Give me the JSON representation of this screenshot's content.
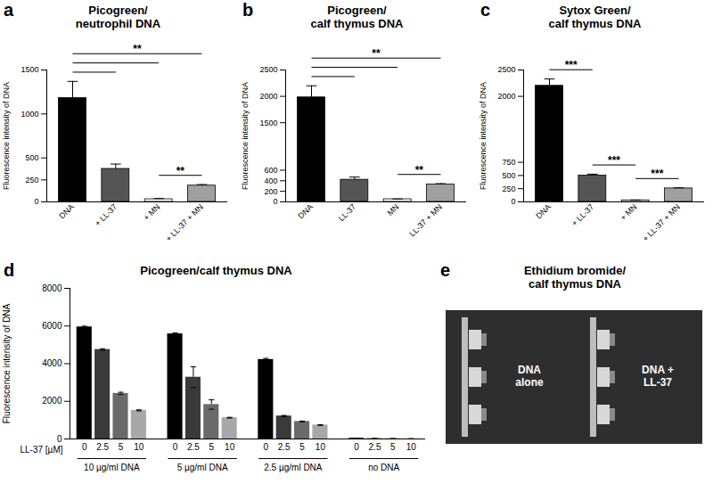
{
  "chart_data": [
    {
      "type": "bar",
      "panel": "a",
      "title": "Picogreen/\nneutrophil DNA",
      "y_label": "Fluorescence intensity of DNA",
      "categories": [
        "DNA",
        "+ LL-37",
        "+ MN",
        "+ LL-37 + MN"
      ],
      "values": [
        1180,
        375,
        30,
        185
      ],
      "errors": [
        190,
        55,
        8,
        12
      ],
      "colors": [
        "#000000",
        "#555555",
        "#ffffff",
        "#a0a0a0"
      ],
      "ylim": [
        0,
        1500
      ],
      "yticks": [
        0,
        250,
        500,
        1000,
        1500
      ],
      "annotations": [
        {
          "text": "**",
          "between": [
            [
              "DNA",
              "+ LL-37"
            ],
            [
              "DNA",
              "+ MN"
            ],
            [
              "DNA",
              "+ LL-37 + MN"
            ]
          ]
        },
        {
          "text": "**",
          "between": [
            [
              "+ MN",
              "+ LL-37 + MN"
            ]
          ]
        }
      ]
    },
    {
      "type": "bar",
      "panel": "b",
      "title": "Picogreen/\ncalf thymus DNA",
      "y_label": "Fluorescence intensity of DNA",
      "categories": [
        "DNA",
        "LL-37",
        "MN",
        "LL-37 + MN"
      ],
      "values": [
        1980,
        420,
        50,
        330
      ],
      "errors": [
        220,
        50,
        5,
        15
      ],
      "colors": [
        "#000000",
        "#555555",
        "#ffffff",
        "#a0a0a0"
      ],
      "ylim": [
        0,
        2500
      ],
      "yticks": [
        0,
        200,
        400,
        600,
        1500,
        2000,
        2500
      ],
      "annotations": [
        {
          "text": "**",
          "between": [
            [
              "DNA",
              "LL-37"
            ],
            [
              "DNA",
              "MN"
            ],
            [
              "DNA",
              "LL-37 + MN"
            ]
          ]
        },
        {
          "text": "**",
          "between": [
            [
              "MN",
              "LL-37 + MN"
            ]
          ]
        }
      ]
    },
    {
      "type": "bar",
      "panel": "c",
      "title": "Sytox Green/\ncalf thymus DNA",
      "y_label": "Fluorescence intensity of DNA",
      "categories": [
        "DNA",
        "+ LL-37",
        "+ MN",
        "+ LL-37 + MN"
      ],
      "values": [
        2200,
        500,
        30,
        255
      ],
      "errors": [
        130,
        25,
        5,
        12
      ],
      "colors": [
        "#000000",
        "#555555",
        "#ffffff",
        "#a0a0a0"
      ],
      "ylim": [
        0,
        2500
      ],
      "yticks": [
        0,
        250,
        500,
        750,
        2000,
        2500
      ],
      "annotations": [
        {
          "text": "***",
          "between": [
            [
              "DNA",
              "+ LL-37"
            ]
          ]
        },
        {
          "text": "***",
          "between": [
            [
              "+ LL-37",
              "+ MN"
            ]
          ]
        },
        {
          "text": "***",
          "between": [
            [
              "+ MN",
              "+ LL-37 + MN"
            ]
          ]
        }
      ]
    },
    {
      "type": "grouped_bar",
      "panel": "d",
      "title": "Picogreen/calf thymus DNA",
      "y_label": "Fluorescence intensity of DNA",
      "x_label": "LL-37 [µM]",
      "categories": [
        "10 µg/ml DNA",
        "5 µg/ml DNA",
        "2.5 µg/ml DNA",
        "no DNA"
      ],
      "series": [
        {
          "name": "0",
          "color": "#000000",
          "values": [
            5950,
            5580,
            4220,
            40
          ],
          "errors": [
            40,
            50,
            60,
            5
          ]
        },
        {
          "name": "2.5",
          "color": "#3a3a3a",
          "values": [
            4750,
            3280,
            1220,
            20
          ],
          "errors": [
            40,
            550,
            30,
            5
          ]
        },
        {
          "name": "5",
          "color": "#6a6a6a",
          "values": [
            2420,
            1830,
            930,
            15
          ],
          "errors": [
            60,
            250,
            20,
            5
          ]
        },
        {
          "name": "10",
          "color": "#a8a8a8",
          "values": [
            1520,
            1130,
            740,
            10
          ],
          "errors": [
            30,
            20,
            20,
            5
          ]
        }
      ],
      "ylim": [
        0,
        8000
      ],
      "yticks": [
        0,
        2000,
        4000,
        6000,
        8000
      ]
    },
    {
      "type": "image",
      "panel": "e",
      "title": "Ethidium bromide/\ncalf thymus DNA",
      "lanes": [
        "DNA alone",
        "DNA + LL-37"
      ]
    }
  ]
}
